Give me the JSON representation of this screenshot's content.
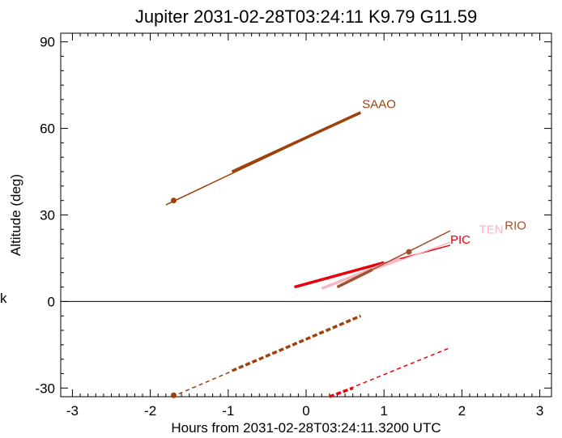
{
  "chart_data": {
    "type": "line",
    "title": "Jupiter 2031-02-28T03:24:11  K9.79  G11.59",
    "xlabel": "Hours from 2031-02-28T03:24:11.3200 UTC",
    "ylabel": "Altitude (deg)",
    "xlim": [
      -3.15,
      3.15
    ],
    "ylim": [
      -33,
      93
    ],
    "x_ticks": [
      -3,
      -2,
      -1,
      0,
      1,
      2,
      3
    ],
    "y_ticks": [
      -30,
      0,
      30,
      60,
      90
    ],
    "x_tick_labels": [
      "-3",
      "-2",
      "-1",
      "0",
      "1",
      "2",
      "3"
    ],
    "y_tick_labels": [
      "-30",
      "0",
      "30",
      "60",
      "90"
    ],
    "side_mark": "k",
    "grid": false,
    "reference_line_y": 0,
    "sites": [
      {
        "name": "SAAO",
        "color": "#a0400a",
        "thin": [
          [
            -1.8,
            33.5
          ],
          [
            0.7,
            65.5
          ]
        ],
        "thick": [
          [
            -0.95,
            45
          ],
          [
            0.7,
            65.5
          ]
        ],
        "marker": [
          -1.7,
          35
        ],
        "label_at": [
          0.72,
          67
        ],
        "below_thin": [
          [
            -1.72,
            -33
          ],
          [
            0.7,
            -5
          ]
        ],
        "below_thick": [
          [
            -0.95,
            -24
          ],
          [
            0.7,
            -5
          ]
        ],
        "below_marker": [
          -1.7,
          -32.5
        ]
      },
      {
        "name": "PIC",
        "color": "#e8000b",
        "thin": [
          [
            -0.15,
            5
          ],
          [
            1.85,
            19.5
          ]
        ],
        "thick": [
          [
            -0.15,
            5
          ],
          [
            1.0,
            13.5
          ]
        ],
        "label_at": [
          1.85,
          20
        ],
        "below_thin": [
          [
            0.3,
            -33
          ],
          [
            1.85,
            -16
          ]
        ],
        "below_thick": [
          [
            0.3,
            -33
          ],
          [
            0.6,
            -30
          ]
        ]
      },
      {
        "name": "TEN",
        "color": "#f7b6c2",
        "thin": [
          [
            0.2,
            4.5
          ],
          [
            1.85,
            20.5
          ]
        ],
        "thick": [
          [
            0.2,
            4.5
          ],
          [
            1.2,
            15
          ]
        ],
        "label_at": [
          2.22,
          23.5
        ],
        "below_thin": [
          [
            1.7,
            -33
          ],
          [
            1.75,
            -32
          ]
        ]
      },
      {
        "name": "RIO",
        "color": "#a0522d",
        "thin": [
          [
            0.4,
            5
          ],
          [
            1.85,
            24.5
          ]
        ],
        "thick": [
          [
            0.4,
            5
          ],
          [
            0.85,
            11
          ]
        ],
        "marker": [
          1.32,
          17.2
        ],
        "label_at": [
          2.55,
          25
        ]
      }
    ]
  }
}
